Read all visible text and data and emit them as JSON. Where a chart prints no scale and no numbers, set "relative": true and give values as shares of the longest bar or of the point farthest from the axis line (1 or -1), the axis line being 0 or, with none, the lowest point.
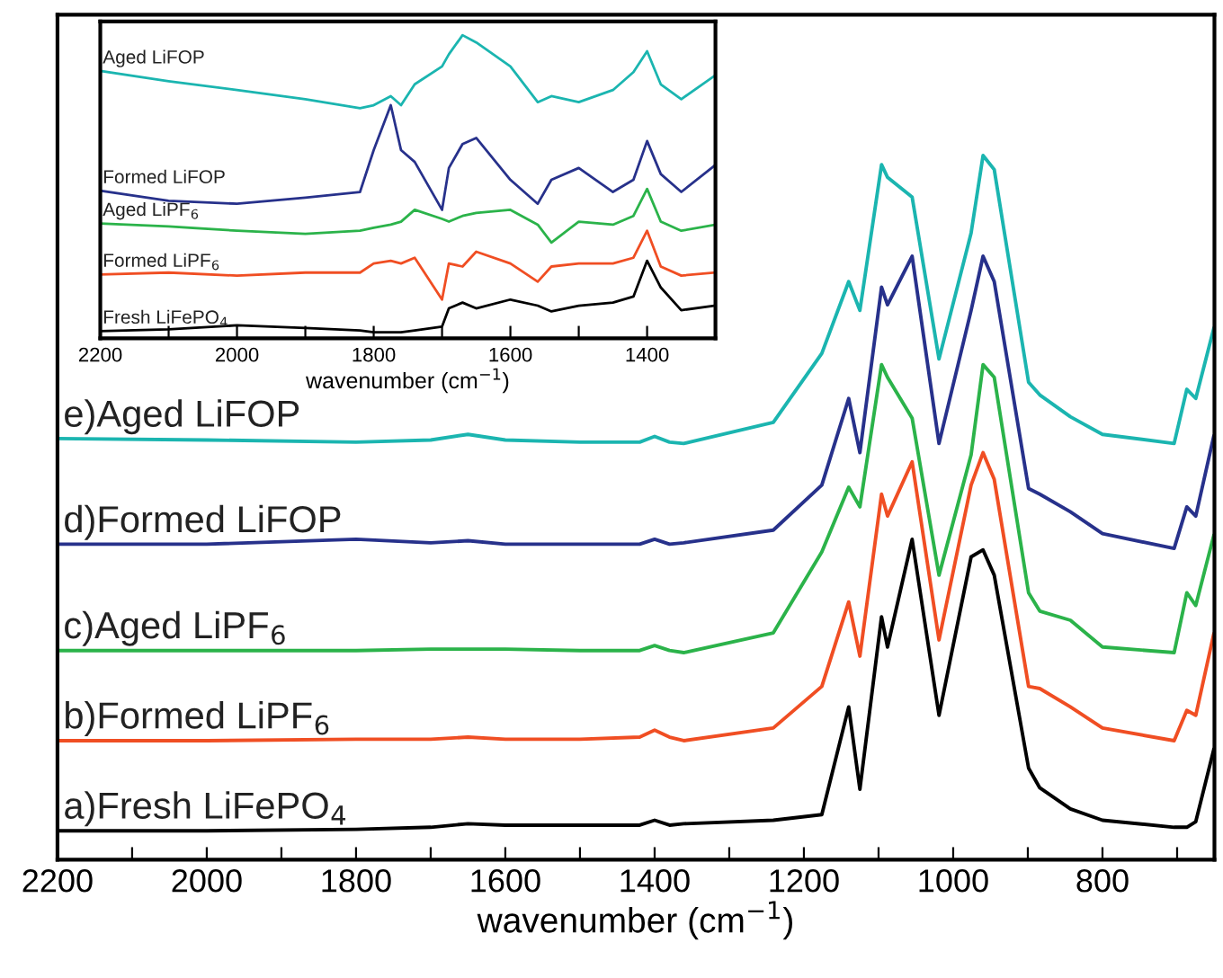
{
  "chart_data": [
    {
      "type": "line",
      "relative": true,
      "tick_labels": "x",
      "xlabel": "wavenumber (cm$^{−1}$)",
      "xlim": [
        2200,
        650
      ],
      "xticks": [
        2200,
        {
          "value": 2100,
          "label": null
        },
        2000,
        {
          "value": 1900,
          "label": null
        },
        1800,
        {
          "value": 1700,
          "label": null
        },
        1600,
        {
          "value": 1500,
          "label": null
        },
        1400,
        {
          "value": 1300,
          "label": null
        },
        1200,
        {
          "value": 1100,
          "label": null
        },
        1000,
        {
          "value": 900,
          "label": null
        },
        800,
        {
          "value": 700,
          "label": null
        }
      ],
      "x": [
        2200,
        2000,
        1800,
        1700,
        1650,
        1600,
        1500,
        1420,
        1400,
        1380,
        1361,
        1241,
        1176,
        1140,
        1125,
        1096,
        1088,
        1055,
        1019,
        976,
        960,
        945,
        899,
        884,
        843,
        800,
        704,
        687,
        675,
        651
      ],
      "series": [
        {
          "name": "a)Fresh LiFePO$_{4}$",
          "color": "#000000",
          "values": [
            0.041,
            0.041,
            0.043,
            0.046,
            0.051,
            0.049,
            0.049,
            0.049,
            0.056,
            0.049,
            0.051,
            0.056,
            0.064,
            0.217,
            0.1,
            0.345,
            0.302,
            0.455,
            0.205,
            0.43,
            0.44,
            0.404,
            0.13,
            0.102,
            0.072,
            0.056,
            0.046,
            0.046,
            0.054,
            0.156
          ]
        },
        {
          "name": "b)Formed LiPF$_{6}$",
          "color": "#f04e23",
          "values": [
            0.169,
            0.169,
            0.171,
            0.171,
            0.174,
            0.171,
            0.171,
            0.174,
            0.184,
            0.174,
            0.169,
            0.187,
            0.246,
            0.366,
            0.289,
            0.519,
            0.488,
            0.565,
            0.312,
            0.532,
            0.578,
            0.54,
            0.246,
            0.243,
            0.217,
            0.187,
            0.169,
            0.212,
            0.205,
            0.32
          ]
        },
        {
          "name": "c)Aged LiPF$_{6}$",
          "color": "#2bb34a",
          "values": [
            0.297,
            0.297,
            0.297,
            0.299,
            0.299,
            0.299,
            0.297,
            0.297,
            0.304,
            0.297,
            0.294,
            0.322,
            0.437,
            0.529,
            0.501,
            0.703,
            0.685,
            0.627,
            0.404,
            0.575,
            0.703,
            0.685,
            0.379,
            0.353,
            0.34,
            0.302,
            0.294,
            0.379,
            0.361,
            0.46
          ]
        },
        {
          "name": "d)Formed LiFOP",
          "color": "#27318b",
          "values": [
            0.448,
            0.448,
            0.455,
            0.45,
            0.453,
            0.448,
            0.448,
            0.448,
            0.455,
            0.448,
            0.45,
            0.468,
            0.532,
            0.655,
            0.578,
            0.813,
            0.788,
            0.857,
            0.591,
            0.78,
            0.857,
            0.821,
            0.527,
            0.519,
            0.494,
            0.463,
            0.442,
            0.501,
            0.488,
            0.601
          ]
        },
        {
          "name": "e)Aged LiFOP",
          "color": "#1bb5b0",
          "values": [
            0.598,
            0.596,
            0.593,
            0.596,
            0.604,
            0.596,
            0.593,
            0.593,
            0.601,
            0.593,
            0.591,
            0.621,
            0.719,
            0.821,
            0.78,
            0.987,
            0.969,
            0.941,
            0.711,
            0.89,
            1.0,
            0.98,
            0.678,
            0.66,
            0.629,
            0.604,
            0.591,
            0.668,
            0.655,
            0.754
          ]
        }
      ]
    },
    {
      "type": "line",
      "relative": true,
      "tick_labels": "x",
      "xlabel": "wavenumber (cm$^{−1}$)",
      "xlim": [
        2200,
        1300
      ],
      "xticks": [
        2200,
        {
          "value": 2100,
          "label": null
        },
        2000,
        {
          "value": 1900,
          "label": null
        },
        1800,
        {
          "value": 1700,
          "label": null
        },
        1600,
        {
          "value": 1500,
          "label": null
        },
        1400
      ],
      "x": [
        2200,
        2100,
        2000,
        1900,
        1820,
        1800,
        1775,
        1760,
        1740,
        1700,
        1690,
        1670,
        1650,
        1600,
        1560,
        1540,
        1500,
        1450,
        1420,
        1400,
        1380,
        1350,
        1300
      ],
      "series": [
        {
          "name": "Fresh LiFePO$_{4}$",
          "color": "#000000",
          "values": [
            0.024,
            0.03,
            0.043,
            0.034,
            0.026,
            0.02,
            0.02,
            0.02,
            0.026,
            0.039,
            0.099,
            0.118,
            0.099,
            0.128,
            0.108,
            0.089,
            0.108,
            0.118,
            0.138,
            0.256,
            0.168,
            0.093,
            0.108
          ]
        },
        {
          "name": "Formed LiPF$_{6}$",
          "color": "#f04e23",
          "values": [
            0.211,
            0.217,
            0.207,
            0.217,
            0.217,
            0.247,
            0.256,
            0.247,
            0.266,
            0.128,
            0.247,
            0.237,
            0.286,
            0.247,
            0.187,
            0.237,
            0.247,
            0.247,
            0.266,
            0.355,
            0.237,
            0.207,
            0.217
          ]
        },
        {
          "name": "Aged LiPF$_{6}$",
          "color": "#2bb34a",
          "values": [
            0.379,
            0.369,
            0.355,
            0.345,
            0.355,
            0.365,
            0.375,
            0.385,
            0.424,
            0.394,
            0.385,
            0.404,
            0.414,
            0.424,
            0.375,
            0.316,
            0.385,
            0.375,
            0.404,
            0.493,
            0.385,
            0.355,
            0.375
          ]
        },
        {
          "name": "Formed LiFOP",
          "color": "#27318b",
          "values": [
            0.487,
            0.454,
            0.444,
            0.464,
            0.483,
            0.621,
            0.769,
            0.621,
            0.582,
            0.424,
            0.562,
            0.641,
            0.661,
            0.523,
            0.444,
            0.523,
            0.562,
            0.483,
            0.523,
            0.651,
            0.542,
            0.483,
            0.572
          ]
        },
        {
          "name": "Aged LiFOP",
          "color": "#1bb5b0",
          "values": [
            0.882,
            0.848,
            0.819,
            0.789,
            0.759,
            0.769,
            0.799,
            0.769,
            0.838,
            0.897,
            0.937,
            1.0,
            0.976,
            0.897,
            0.779,
            0.799,
            0.779,
            0.819,
            0.878,
            0.947,
            0.838,
            0.789,
            0.868
          ]
        }
      ]
    }
  ]
}
